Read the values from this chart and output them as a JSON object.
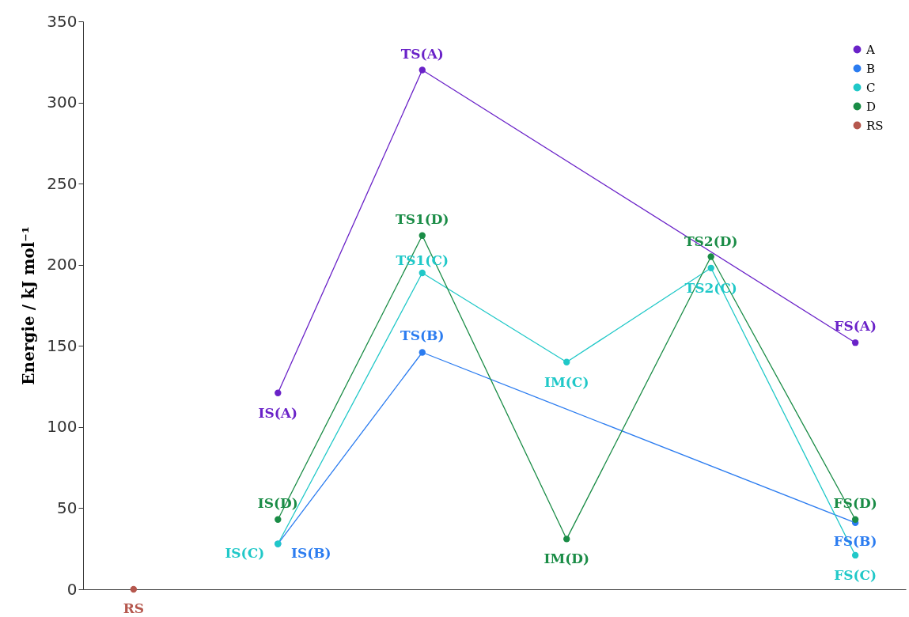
{
  "chart_data": {
    "type": "line",
    "ylabel": "Energie / kJ mol⁻¹",
    "categories": [
      null,
      null,
      null,
      null,
      null,
      null
    ],
    "ylim": [
      0,
      350
    ],
    "yticks": [
      0,
      50,
      100,
      150,
      200,
      250,
      300,
      350
    ],
    "grid": false,
    "legend": "top right",
    "marker": "circle",
    "series": [
      {
        "name": "A",
        "color": "#6a22c8",
        "values": [
          null,
          121,
          320,
          null,
          null,
          152
        ],
        "value_labels": [
          null,
          "IS(A)",
          "TS(A)",
          null,
          null,
          "FS(A)"
        ]
      },
      {
        "name": "B",
        "color": "#2b7cf0",
        "values": [
          null,
          28,
          146,
          null,
          null,
          41
        ],
        "value_labels": [
          null,
          "IS(B)",
          "TS(B)",
          null,
          null,
          "FS(B)"
        ]
      },
      {
        "name": "C",
        "color": "#20c8c8",
        "values": [
          null,
          28,
          195,
          140,
          198,
          21
        ],
        "value_labels": [
          null,
          "IS(C)",
          "TS1(C)",
          "IM(C)",
          "TS2(C)",
          "FS(C)"
        ]
      },
      {
        "name": "D",
        "color": "#1a8c46",
        "values": [
          null,
          43,
          218,
          31,
          205,
          43
        ],
        "value_labels": [
          null,
          "IS(D)",
          "TS1(D)",
          "IM(D)",
          "TS2(D)",
          "FS(D)"
        ]
      },
      {
        "name": "RS",
        "type": "scatter",
        "color": "#b5574d",
        "values": [
          0,
          null,
          null,
          null,
          null,
          null
        ],
        "value_labels": [
          "RS",
          null,
          null,
          null,
          null,
          null
        ]
      }
    ]
  }
}
